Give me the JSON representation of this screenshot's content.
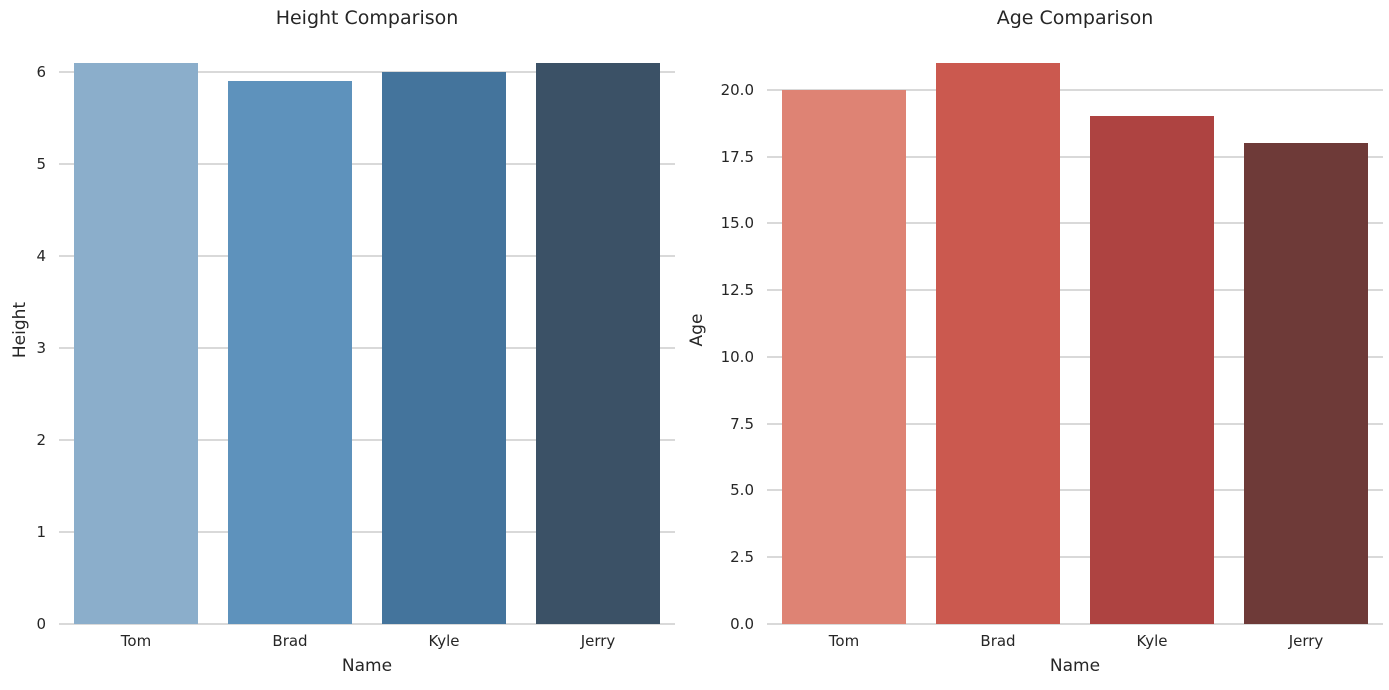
{
  "figure": {
    "background_color": "#ffffff",
    "text_color": "#262626",
    "grid_color": "#d9d9d9"
  },
  "chart_data": [
    {
      "type": "bar",
      "title": "Height Comparison",
      "xlabel": "Name",
      "ylabel": "Height",
      "categories": [
        "Tom",
        "Brad",
        "Kyle",
        "Jerry"
      ],
      "values": [
        6.1,
        5.9,
        6.0,
        6.1
      ],
      "ylim": [
        0,
        6.405
      ],
      "yticks": [
        0,
        1,
        2,
        3,
        4,
        5,
        6
      ],
      "ytick_labels": [
        "0",
        "1",
        "2",
        "3",
        "4",
        "5",
        "6"
      ],
      "bar_colors": [
        "#8baecb",
        "#5e92bc",
        "#44749c",
        "#3b5166"
      ],
      "grid": true,
      "legend": null
    },
    {
      "type": "bar",
      "title": "Age Comparison",
      "xlabel": "Name",
      "ylabel": "Age",
      "categories": [
        "Tom",
        "Brad",
        "Kyle",
        "Jerry"
      ],
      "values": [
        20,
        21,
        19,
        18
      ],
      "ylim": [
        0,
        22.05
      ],
      "yticks": [
        0,
        2.5,
        5,
        7.5,
        10,
        12.5,
        15,
        17.5,
        20
      ],
      "ytick_labels": [
        "0.0",
        "2.5",
        "5.0",
        "7.5",
        "10.0",
        "12.5",
        "15.0",
        "17.5",
        "20.0"
      ],
      "bar_colors": [
        "#de8374",
        "#cb594f",
        "#ae4341",
        "#6e3a38"
      ],
      "grid": true,
      "legend": null
    }
  ]
}
